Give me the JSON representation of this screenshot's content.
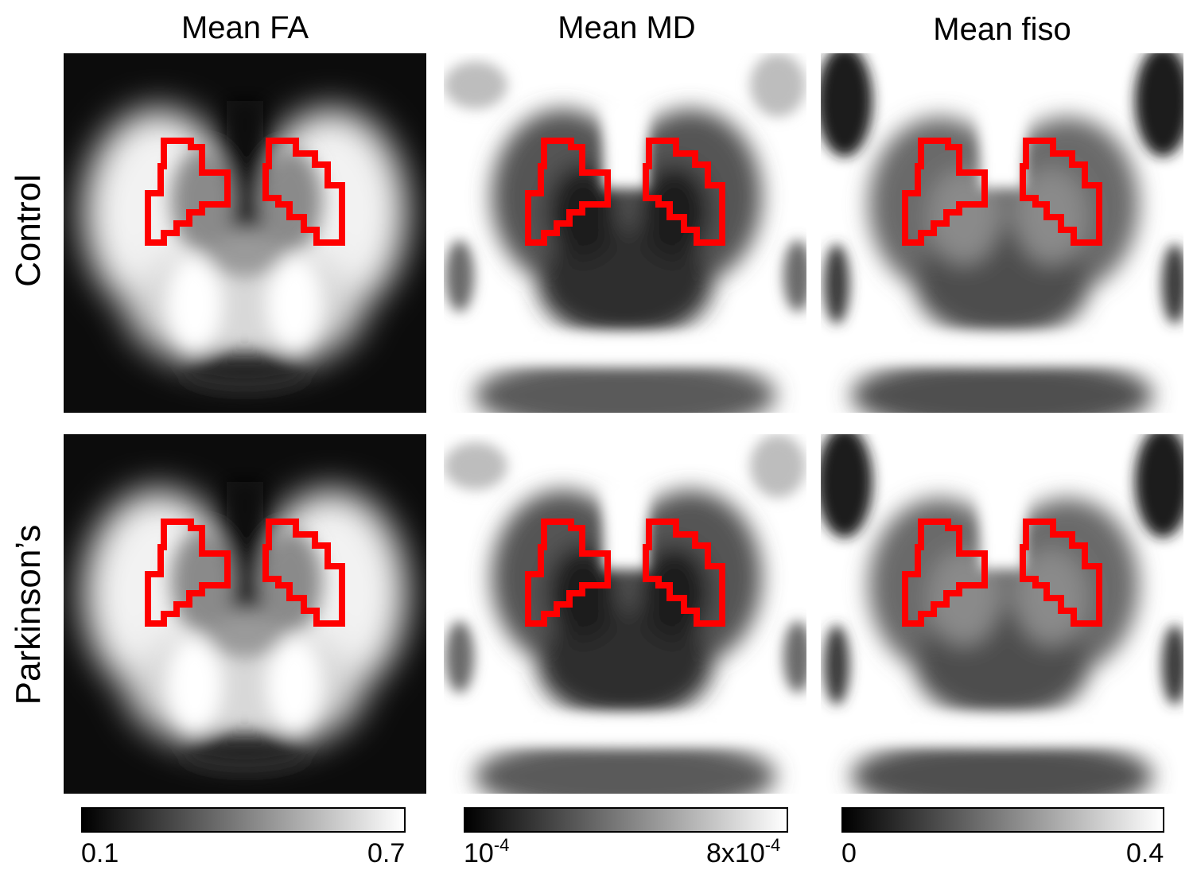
{
  "columns": [
    {
      "title": "Mean FA",
      "cbar_min": "0.1",
      "cbar_max": "0.7"
    },
    {
      "title": "Mean MD",
      "cbar_min_base": "10",
      "cbar_min_exp": "-4",
      "cbar_max_base": "8x10",
      "cbar_max_exp": "-4"
    },
    {
      "title": "Mean fiso",
      "cbar_min": "0",
      "cbar_max": "0.4"
    }
  ],
  "rows": [
    {
      "label": "Control"
    },
    {
      "label": "Parkinson’s"
    }
  ],
  "colors": {
    "roi_outline": "#ff0000",
    "background": "#ffffff",
    "colormap_low": "#000000",
    "colormap_high": "#ffffff"
  }
}
